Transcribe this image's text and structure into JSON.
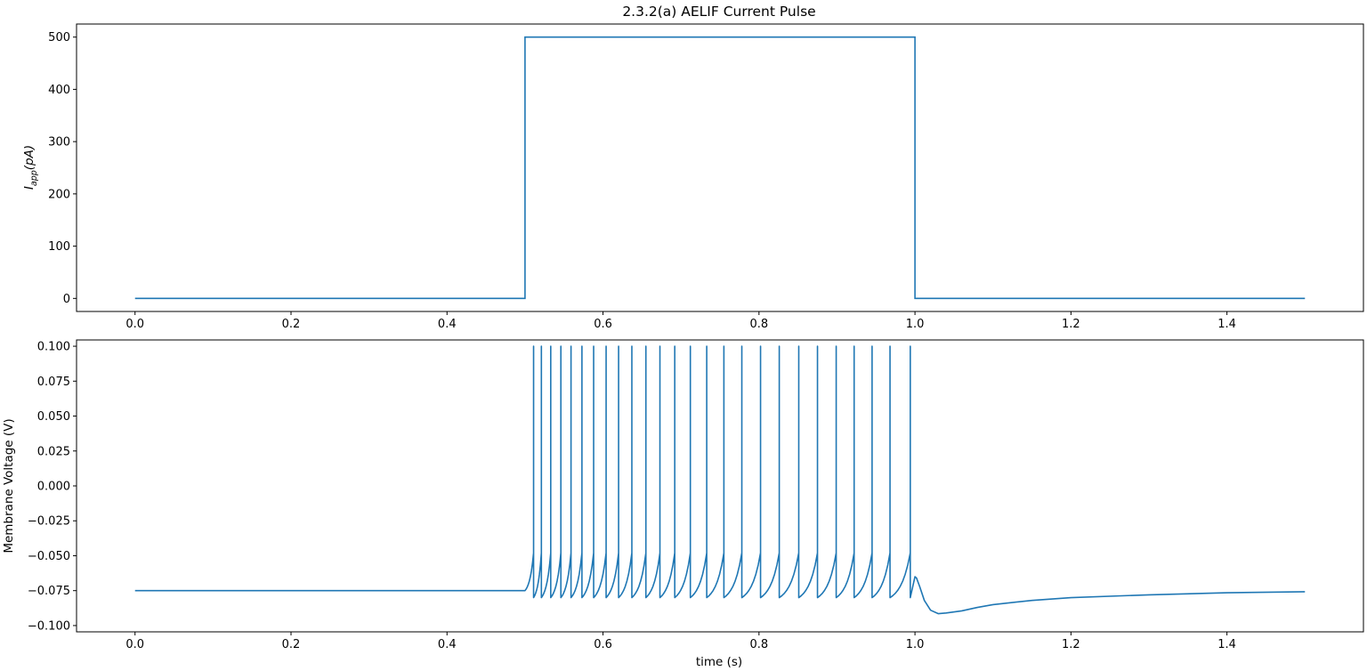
{
  "chart_data": [
    {
      "type": "line",
      "title": "2.3.2(a) AELIF Current Pulse",
      "ylabel_main": "I",
      "ylabel_sub": "app",
      "ylabel_rest": "(pA)",
      "xlabel": "",
      "xlim": [
        -0.075,
        1.575
      ],
      "ylim": [
        -25,
        525
      ],
      "xticks": [
        0.0,
        0.2,
        0.4,
        0.6,
        0.8,
        1.0,
        1.2,
        1.4
      ],
      "xtick_labels": [
        "0.0",
        "0.2",
        "0.4",
        "0.6",
        "0.8",
        "1.0",
        "1.2",
        "1.4"
      ],
      "yticks": [
        0,
        100,
        200,
        300,
        400,
        500
      ],
      "ytick_labels": [
        "0",
        "100",
        "200",
        "300",
        "400",
        "500"
      ],
      "grid": false,
      "color": "#1f77b4",
      "series": [
        {
          "x": [
            0.0,
            0.5,
            0.5,
            1.0,
            1.0,
            1.5
          ],
          "y": [
            0,
            0,
            500,
            500,
            0,
            0
          ]
        }
      ]
    },
    {
      "type": "line",
      "title": "",
      "xlabel": "time (s)",
      "ylabel": "Membrane Voltage (V)",
      "xlim": [
        -0.075,
        1.575
      ],
      "ylim": [
        -0.1045,
        0.1045
      ],
      "xticks": [
        0.0,
        0.2,
        0.4,
        0.6,
        0.8,
        1.0,
        1.2,
        1.4
      ],
      "xtick_labels": [
        "0.0",
        "0.2",
        "0.4",
        "0.6",
        "0.8",
        "1.0",
        "1.2",
        "1.4"
      ],
      "yticks": [
        -0.1,
        -0.075,
        -0.05,
        -0.025,
        0.0,
        0.025,
        0.05,
        0.075,
        0.1
      ],
      "ytick_labels": [
        "−0.100",
        "−0.075",
        "−0.050",
        "−0.025",
        "0.000",
        "0.025",
        "0.050",
        "0.075",
        "0.100"
      ],
      "grid": false,
      "color": "#1f77b4",
      "resting_potential": -0.075,
      "reset_potential": -0.08,
      "spike_peak": 0.1,
      "pre_spike_voltage": -0.048,
      "spike_times": [
        0.511,
        0.521,
        0.533,
        0.546,
        0.559,
        0.573,
        0.588,
        0.604,
        0.62,
        0.637,
        0.655,
        0.673,
        0.692,
        0.712,
        0.733,
        0.755,
        0.778,
        0.802,
        0.826,
        0.851,
        0.875,
        0.899,
        0.922,
        0.945,
        0.968,
        0.994
      ],
      "post_pulse": {
        "x": [
          1.0,
          1.002,
          1.006,
          1.012,
          1.02,
          1.03,
          1.04,
          1.06,
          1.08,
          1.1,
          1.15,
          1.2,
          1.3,
          1.4,
          1.5
        ],
        "y": [
          -0.065,
          -0.066,
          -0.072,
          -0.082,
          -0.089,
          -0.0915,
          -0.091,
          -0.0895,
          -0.087,
          -0.085,
          -0.082,
          -0.08,
          -0.078,
          -0.0765,
          -0.0758
        ]
      }
    }
  ]
}
